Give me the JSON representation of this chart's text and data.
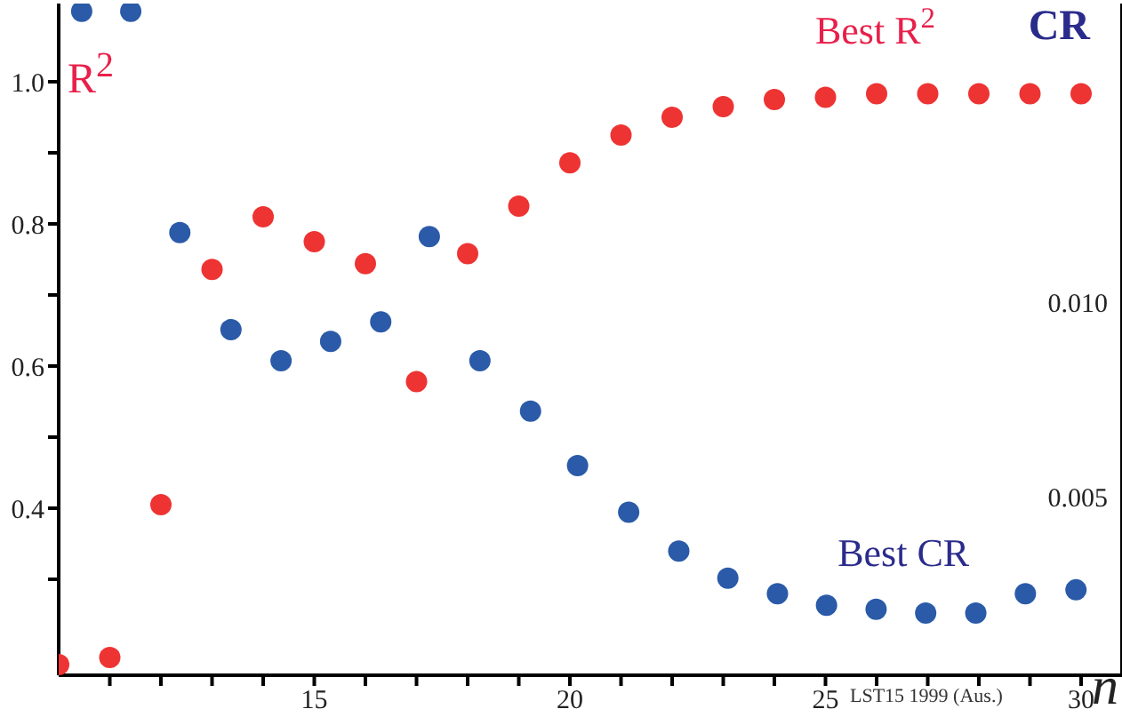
{
  "chart_data": {
    "type": "scatter",
    "ylabel": "R$^{2}$",
    "y2label": "CR",
    "xlabel": "n",
    "annotations": [
      "LST15 1999 (Aus.)"
    ],
    "xlim": [
      10,
      30.8
    ],
    "xticks": [
      {
        "value": 11,
        "label": null
      },
      {
        "value": 12,
        "label": null
      },
      {
        "value": 13,
        "label": null
      },
      {
        "value": 14,
        "label": null
      },
      15,
      {
        "value": 16,
        "label": null
      },
      {
        "value": 17,
        "label": null
      },
      {
        "value": 18,
        "label": null
      },
      {
        "value": 19,
        "label": null
      },
      20,
      {
        "value": 21,
        "label": null
      },
      {
        "value": 22,
        "label": null
      },
      {
        "value": 23,
        "label": null
      },
      {
        "value": 24,
        "label": null
      },
      25,
      {
        "value": 26,
        "label": null
      },
      {
        "value": 27,
        "label": null
      },
      {
        "value": 28,
        "label": null
      },
      {
        "value": 29,
        "label": null
      },
      30
    ],
    "ylim": [
      0.165,
      1.11
    ],
    "yticks": [
      {
        "value": 0.3,
        "label": null
      },
      0.4,
      {
        "value": 0.5,
        "label": null
      },
      0.6,
      {
        "value": 0.7,
        "label": null
      },
      0.8,
      {
        "value": 0.9,
        "label": null
      },
      {
        "value": 1.0,
        "label": "1.0"
      }
    ],
    "y2lim": [
      0.0004,
      0.0177
    ],
    "y2ticks": [
      {
        "value": 0.005,
        "label": "0.005"
      },
      {
        "value": 0.01,
        "label": "0.010"
      }
    ],
    "marker": "circle",
    "series": [
      {
        "name": "Best R$^{2}$",
        "color": "#ee3333",
        "x": [
          10,
          11,
          12,
          13,
          14,
          15,
          16,
          17,
          18,
          19,
          20,
          21,
          22,
          23,
          24,
          25,
          26,
          27,
          28,
          29,
          30
        ],
        "values": [
          0.18,
          0.19,
          0.405,
          0.736,
          0.81,
          0.775,
          0.744,
          0.578,
          0.758,
          0.825,
          0.886,
          0.925,
          0.95,
          0.965,
          0.975,
          0.978,
          0.983,
          0.983,
          0.983,
          0.983,
          0.983
        ]
      },
      {
        "name": "Best CR",
        "color": "#2a5aa8",
        "axis": "y2",
        "x": [
          10.45,
          11.41,
          12.37,
          13.37,
          14.35,
          15.32,
          16.3,
          17.25,
          18.24,
          19.23,
          20.15,
          21.15,
          22.13,
          23.09,
          24.06,
          25.02,
          25.99,
          26.96,
          27.94,
          28.91,
          29.9
        ],
        "values": [
          0.0175,
          0.0175,
          0.0118,
          0.0093,
          0.0085,
          0.009,
          0.0095,
          0.0117,
          0.0085,
          0.0072,
          0.0058,
          0.0046,
          0.0036,
          0.0029,
          0.0025,
          0.0022,
          0.0021,
          0.002,
          0.002,
          0.0025,
          0.0026
        ]
      }
    ]
  }
}
